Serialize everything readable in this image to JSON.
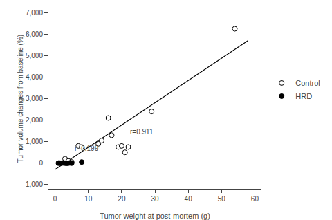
{
  "chart_data": {
    "type": "scatter",
    "x_label": "Tumor weight at post-mortem (g)",
    "y_label": "Tumor volume changes from baseline (%)",
    "series": [
      {
        "type": "line",
        "color": "black",
        "x": [
          0,
          58
        ],
        "values": [
          -300,
          5700
        ]
      },
      {
        "name": "Control",
        "type": "scatter",
        "marker": "open circle",
        "color": "black",
        "x": [
          3,
          4,
          5,
          7,
          8,
          13,
          14,
          16,
          17,
          19,
          20,
          21,
          22,
          29,
          54
        ],
        "values": [
          200,
          100,
          50,
          800,
          750,
          900,
          1050,
          2100,
          1300,
          750,
          800,
          500,
          750,
          2400,
          6250
        ]
      },
      {
        "name": "HRD",
        "type": "scatter",
        "marker": "circle",
        "color": "black",
        "x": [
          1,
          1.5,
          2,
          2.5,
          3,
          3.5,
          4,
          4.5,
          5,
          8
        ],
        "values": [
          0,
          0,
          0,
          10,
          0,
          -10,
          0,
          10,
          0,
          50
        ]
      }
    ],
    "annotations": [
      {
        "text": "r=0.911",
        "x": 22,
        "y": 1450
      },
      {
        "text": "r=0.199",
        "x": 5.5,
        "y": 680
      }
    ],
    "xlim": [
      -2,
      62
    ],
    "xticks": [
      0,
      10,
      20,
      30,
      40,
      50,
      60
    ],
    "ylim": [
      -1200,
      7200
    ],
    "yticks": [
      {
        "value": -1000,
        "label": "-1,000"
      },
      0,
      {
        "value": 1000,
        "label": "1,000"
      },
      {
        "value": 2000,
        "label": "2,000"
      },
      {
        "value": 3000,
        "label": "3,000"
      },
      {
        "value": 4000,
        "label": "4,000"
      },
      {
        "value": 5000,
        "label": "5,000"
      },
      {
        "value": 6000,
        "label": "6,000"
      },
      {
        "value": 7000,
        "label": "7,000"
      }
    ],
    "grid": false,
    "legend": "right"
  }
}
